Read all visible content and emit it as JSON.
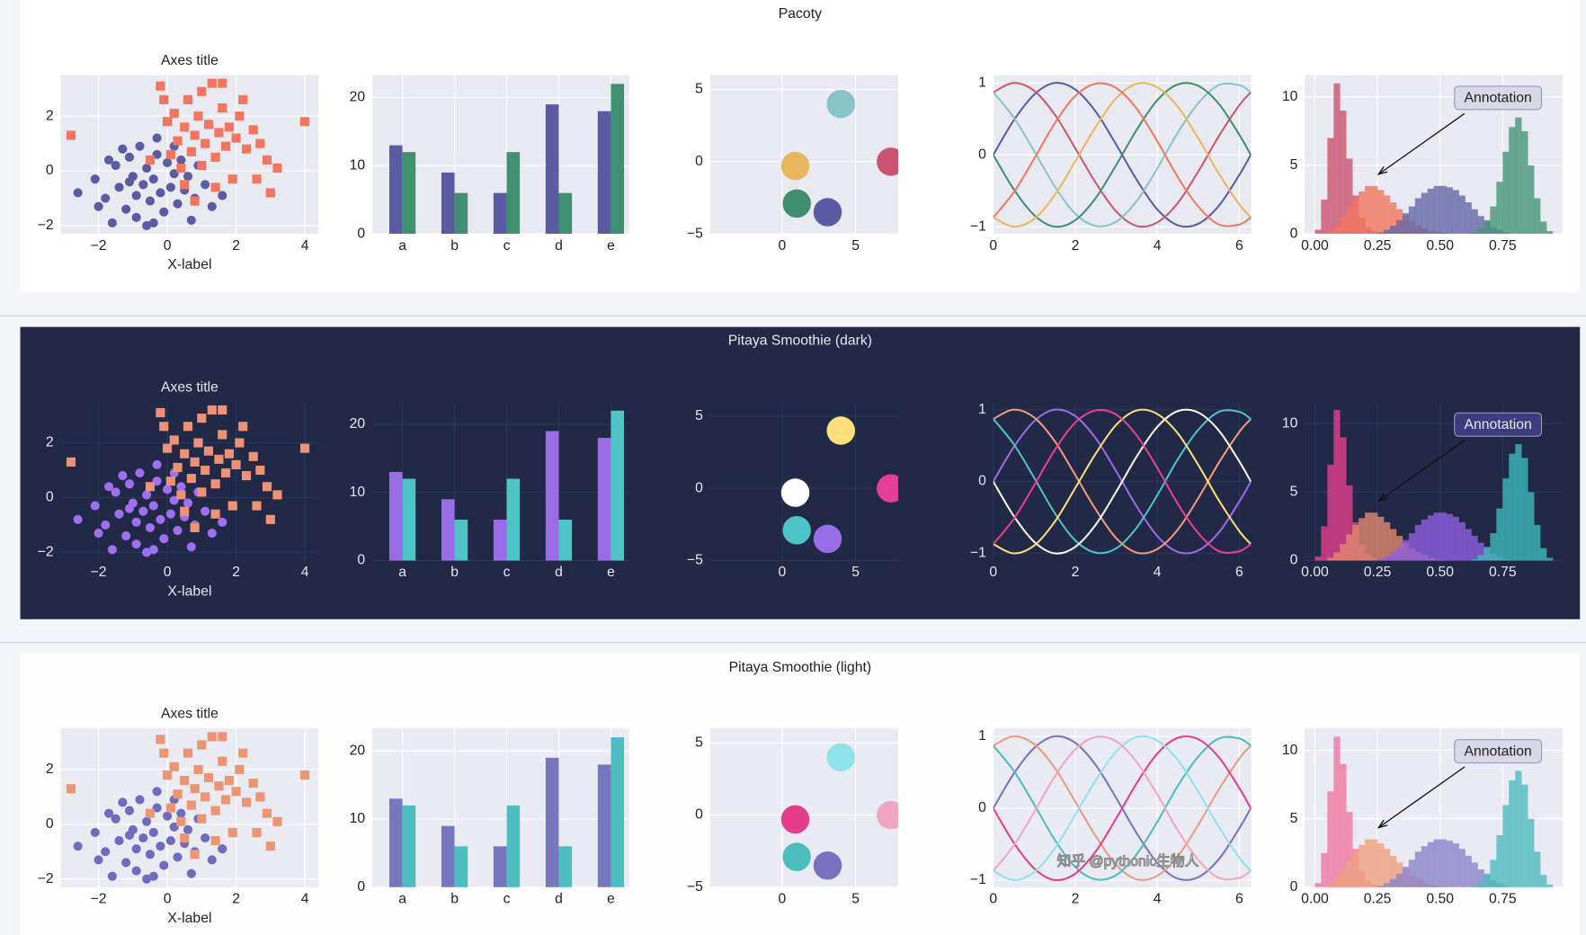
{
  "rows": [
    {
      "title": "Pacoty",
      "background": "#ffffff",
      "axes_background": "#e9e9f1",
      "grid_color": "#ffffff",
      "text_color": "#222222",
      "annotation_fill": "#d8d8e6",
      "colors": [
        [
          "#5b5ba3",
          "#f2765f"
        ],
        [
          "#5b5ba3",
          "#3f8f71"
        ],
        [
          "#88c3c8",
          "#e8b65c",
          "#cc5470",
          "#3e8e6f",
          "#5b5ba3"
        ],
        [
          "#5b5ba3",
          "#cc5470",
          "#88c3c8",
          "#3e8e6f",
          "#e8b65c",
          "#f2765f"
        ],
        [
          "#cc5470",
          "#f2765f",
          "#6567a8",
          "#46967a"
        ]
      ]
    },
    {
      "title": "Pitaya Smoothie (dark)",
      "background": "#212946",
      "axes_background": "#212946",
      "grid_color": "#2c3760",
      "text_color": "#e6e9f2",
      "annotation_fill": "#3b3d80",
      "colors": [
        [
          "#9e6ff0",
          "#ee9277"
        ],
        [
          "#9b6ce8",
          "#4fc4c6"
        ],
        [
          "#fde07b",
          "#ffffff",
          "#e33f95",
          "#4fc4c6",
          "#9b6ce8"
        ],
        [
          "#9b6ce8",
          "#f59b7d",
          "#4fc4c6",
          "#ffffff",
          "#fde07b",
          "#e8418f"
        ],
        [
          "#e33f8f",
          "#e08a6f",
          "#8f5fe0",
          "#3fb8bb"
        ]
      ]
    },
    {
      "title": "Pitaya Smoothie (light)",
      "background": "#fdfdfe",
      "axes_background": "#e9eaf2",
      "grid_color": "#ffffff",
      "text_color": "#222222",
      "annotation_fill": "#d8d8e6",
      "colors": [
        [
          "#6f6bbd",
          "#ec9575"
        ],
        [
          "#7777c0",
          "#4dbdc0"
        ],
        [
          "#8ee3ea",
          "#e33d8b",
          "#f0a6c0",
          "#4dbcbc",
          "#7a72bf"
        ],
        [
          "#7a72bf",
          "#e89a80",
          "#4dbcbc",
          "#e33d8b",
          "#8ee3ea",
          "#f0a6c0"
        ],
        [
          "#ef77a0",
          "#eea17e",
          "#8b84c9",
          "#4dbcbc"
        ]
      ]
    }
  ],
  "watermark": "知乎 @pythonic生物人",
  "chart_data": [
    {
      "type": "scatter",
      "title": "Axes title",
      "xlabel": "X-label",
      "grid": true,
      "xlim": [
        -3.1,
        4.4
      ],
      "ylim": [
        -2.3,
        3.5
      ],
      "xticks": [
        {
          "value": -2,
          "label": "−2"
        },
        0,
        2,
        4
      ],
      "yticks": [
        {
          "value": -2,
          "label": "−2"
        },
        0,
        2
      ],
      "series": [
        {
          "marker": "o",
          "x": [
            -2.6,
            -2.1,
            -1.8,
            -1.5,
            -1.4,
            -1.2,
            -1.1,
            -1.0,
            -0.9,
            -0.8,
            -0.7,
            -0.6,
            -0.5,
            -0.4,
            -0.3,
            -0.2,
            -0.1,
            0.0,
            0.1,
            0.2,
            0.3,
            0.4,
            0.5,
            0.6,
            0.8,
            0.9,
            1.1,
            1.3,
            -1.6,
            -0.6,
            -1.3,
            -2.0,
            -0.3,
            0.7,
            -0.9,
            -1.7,
            0.2,
            -0.4,
            1.6,
            -1.1
          ],
          "values": [
            -0.8,
            -0.3,
            -1.0,
            0.2,
            -0.6,
            -1.4,
            0.5,
            -0.2,
            -1.7,
            0.9,
            -0.5,
            0.1,
            -1.1,
            -0.3,
            0.6,
            -0.8,
            -1.5,
            0.3,
            -0.6,
            -0.1,
            -1.2,
            0.4,
            -0.7,
            -0.2,
            -1.0,
            0.2,
            -0.5,
            -1.3,
            -1.9,
            -2.0,
            0.8,
            -1.3,
            1.2,
            -1.8,
            -0.9,
            0.4,
            0.9,
            -1.9,
            -0.9,
            -0.4
          ]
        },
        {
          "marker": "s",
          "x": [
            -2.8,
            -0.2,
            -0.1,
            0.0,
            0.1,
            0.2,
            0.3,
            0.4,
            0.5,
            0.6,
            0.7,
            0.8,
            0.9,
            1.0,
            1.1,
            1.2,
            1.3,
            1.4,
            1.5,
            1.6,
            1.7,
            1.8,
            1.9,
            2.0,
            2.1,
            2.3,
            2.5,
            2.7,
            2.9,
            3.0,
            3.2,
            4.0,
            1.6,
            0.5,
            2.2,
            1.0,
            -0.5,
            1.4,
            2.6,
            0.8
          ],
          "values": [
            1.3,
            3.1,
            2.6,
            1.8,
            0.6,
            2.1,
            1.1,
            0.1,
            1.6,
            2.6,
            0.7,
            1.3,
            2.0,
            0.2,
            1.0,
            1.7,
            3.2,
            0.5,
            1.4,
            2.3,
            0.9,
            1.6,
            -0.3,
            1.2,
            2.0,
            0.8,
            1.5,
            1.0,
            0.4,
            -0.8,
            0.1,
            1.8,
            3.2,
            -0.5,
            2.6,
            2.9,
            0.4,
            -0.6,
            -0.3,
            -1.1
          ]
        }
      ]
    },
    {
      "type": "bar",
      "grid": true,
      "categories": [
        "a",
        "b",
        "c",
        "d",
        "e"
      ],
      "ylim": [
        0,
        23.3
      ],
      "yticks": [
        0,
        10,
        20
      ],
      "series": [
        {
          "values": [
            13,
            9,
            6,
            19,
            18
          ]
        },
        {
          "values": [
            12,
            6,
            12,
            6,
            22
          ]
        }
      ]
    },
    {
      "type": "scatter",
      "grid": true,
      "xlim": [
        -4.9,
        7.9
      ],
      "ylim": [
        -5,
        6
      ],
      "xticks": [
        0,
        5
      ],
      "yticks": [
        {
          "value": -5,
          "label": "−5"
        },
        0,
        5
      ],
      "series": [
        {
          "marker": "o",
          "x": [
            4,
            0.9,
            7.4,
            1,
            3.1
          ],
          "values": [
            4,
            -0.3,
            0,
            -2.9,
            -3.5
          ]
        }
      ]
    },
    {
      "type": "line",
      "grid": true,
      "xlim": [
        0,
        6.29
      ],
      "ylim": [
        -1.1,
        1.11
      ],
      "xticks": [
        0,
        2,
        4,
        6
      ],
      "yticks": [
        {
          "value": -1,
          "label": "−1"
        },
        0,
        1
      ],
      "x": [
        0,
        0.5,
        1,
        1.5,
        2,
        2.5,
        3,
        3.5,
        4,
        4.5,
        5,
        5.5,
        6,
        6.28
      ],
      "series": [
        {
          "values": [
            0,
            0.48,
            0.84,
            1.0,
            0.91,
            0.6,
            0.14,
            -0.35,
            -0.76,
            -0.98,
            -0.96,
            -0.71,
            -0.28,
            0
          ]
        },
        {
          "values": [
            0.87,
            1.0,
            0.89,
            0.56,
            0.09,
            -0.39,
            -0.79,
            -0.99,
            -0.94,
            -0.67,
            -0.23,
            0.26,
            0.69,
            0.87
          ]
        },
        {
          "values": [
            0.87,
            0.52,
            0.05,
            -0.44,
            -0.82,
            -0.99,
            -0.93,
            -0.64,
            -0.19,
            0.31,
            0.72,
            0.97,
            0.97,
            0.87
          ]
        },
        {
          "values": [
            0,
            -0.48,
            -0.84,
            -1.0,
            -0.91,
            -0.6,
            -0.14,
            0.35,
            0.76,
            0.98,
            0.96,
            0.71,
            0.28,
            0
          ]
        },
        {
          "values": [
            -0.87,
            -1.0,
            -0.89,
            -0.56,
            -0.09,
            0.39,
            0.79,
            0.99,
            0.94,
            0.67,
            0.23,
            -0.26,
            -0.69,
            -0.87
          ]
        },
        {
          "values": [
            -0.87,
            -0.52,
            -0.05,
            0.44,
            0.82,
            0.99,
            0.93,
            0.64,
            0.19,
            -0.31,
            -0.72,
            -0.97,
            -0.97,
            -0.87
          ]
        }
      ]
    },
    {
      "type": "histogram",
      "grid": true,
      "annotation": "Annotation",
      "xlim": [
        -0.04,
        0.99
      ],
      "ylim": [
        0,
        11.6
      ],
      "xticks": [
        {
          "value": 0,
          "label": "0.00"
        },
        0.25,
        {
          "value": 0.5,
          "label": "0.50"
        },
        0.75
      ],
      "yticks": [
        0,
        5,
        10
      ],
      "bins": [
        0,
        0.025,
        0.05,
        0.075,
        0.1,
        0.125,
        0.15,
        0.175,
        0.2,
        0.225,
        0.25,
        0.275,
        0.3,
        0.325,
        0.35,
        0.375,
        0.4,
        0.425,
        0.45,
        0.475,
        0.5,
        0.525,
        0.55,
        0.575,
        0.6,
        0.625,
        0.65,
        0.675,
        0.7,
        0.725,
        0.75,
        0.775,
        0.8,
        0.825,
        0.85,
        0.875,
        0.9,
        0.925,
        0.95
      ],
      "series": [
        {
          "values": [
            0.3,
            2.5,
            7,
            11,
            9,
            5.5,
            2.8,
            1.2,
            0.5,
            0.2,
            0.1,
            0,
            0,
            0,
            0,
            0,
            0,
            0,
            0,
            0,
            0,
            0,
            0,
            0,
            0,
            0,
            0,
            0,
            0,
            0,
            0,
            0,
            0,
            0,
            0,
            0,
            0,
            0
          ]
        },
        {
          "values": [
            0,
            0,
            0.2,
            0.6,
            1.2,
            1.9,
            2.6,
            3.1,
            3.5,
            3.5,
            3.2,
            2.8,
            2.3,
            1.8,
            1.3,
            0.9,
            0.6,
            0.4,
            0.2,
            0.1,
            0.05,
            0,
            0,
            0,
            0,
            0,
            0,
            0,
            0,
            0,
            0,
            0,
            0,
            0,
            0,
            0,
            0,
            0
          ]
        },
        {
          "values": [
            0,
            0,
            0,
            0,
            0,
            0,
            0,
            0,
            0,
            0,
            0.1,
            0.3,
            0.6,
            1.0,
            1.5,
            2.0,
            2.6,
            3.0,
            3.3,
            3.5,
            3.5,
            3.4,
            3.2,
            2.8,
            2.3,
            1.8,
            1.3,
            0.9,
            0.5,
            0.3,
            0.1,
            0,
            0,
            0,
            0,
            0,
            0,
            0
          ]
        },
        {
          "values": [
            0,
            0,
            0,
            0,
            0,
            0,
            0,
            0,
            0,
            0,
            0,
            0,
            0,
            0,
            0,
            0,
            0,
            0,
            0,
            0,
            0,
            0,
            0,
            0,
            0,
            0.1,
            0.4,
            1.0,
            2.0,
            3.8,
            6.0,
            7.8,
            8.5,
            7.5,
            5.0,
            2.6,
            0.9,
            0.2
          ]
        }
      ]
    }
  ]
}
